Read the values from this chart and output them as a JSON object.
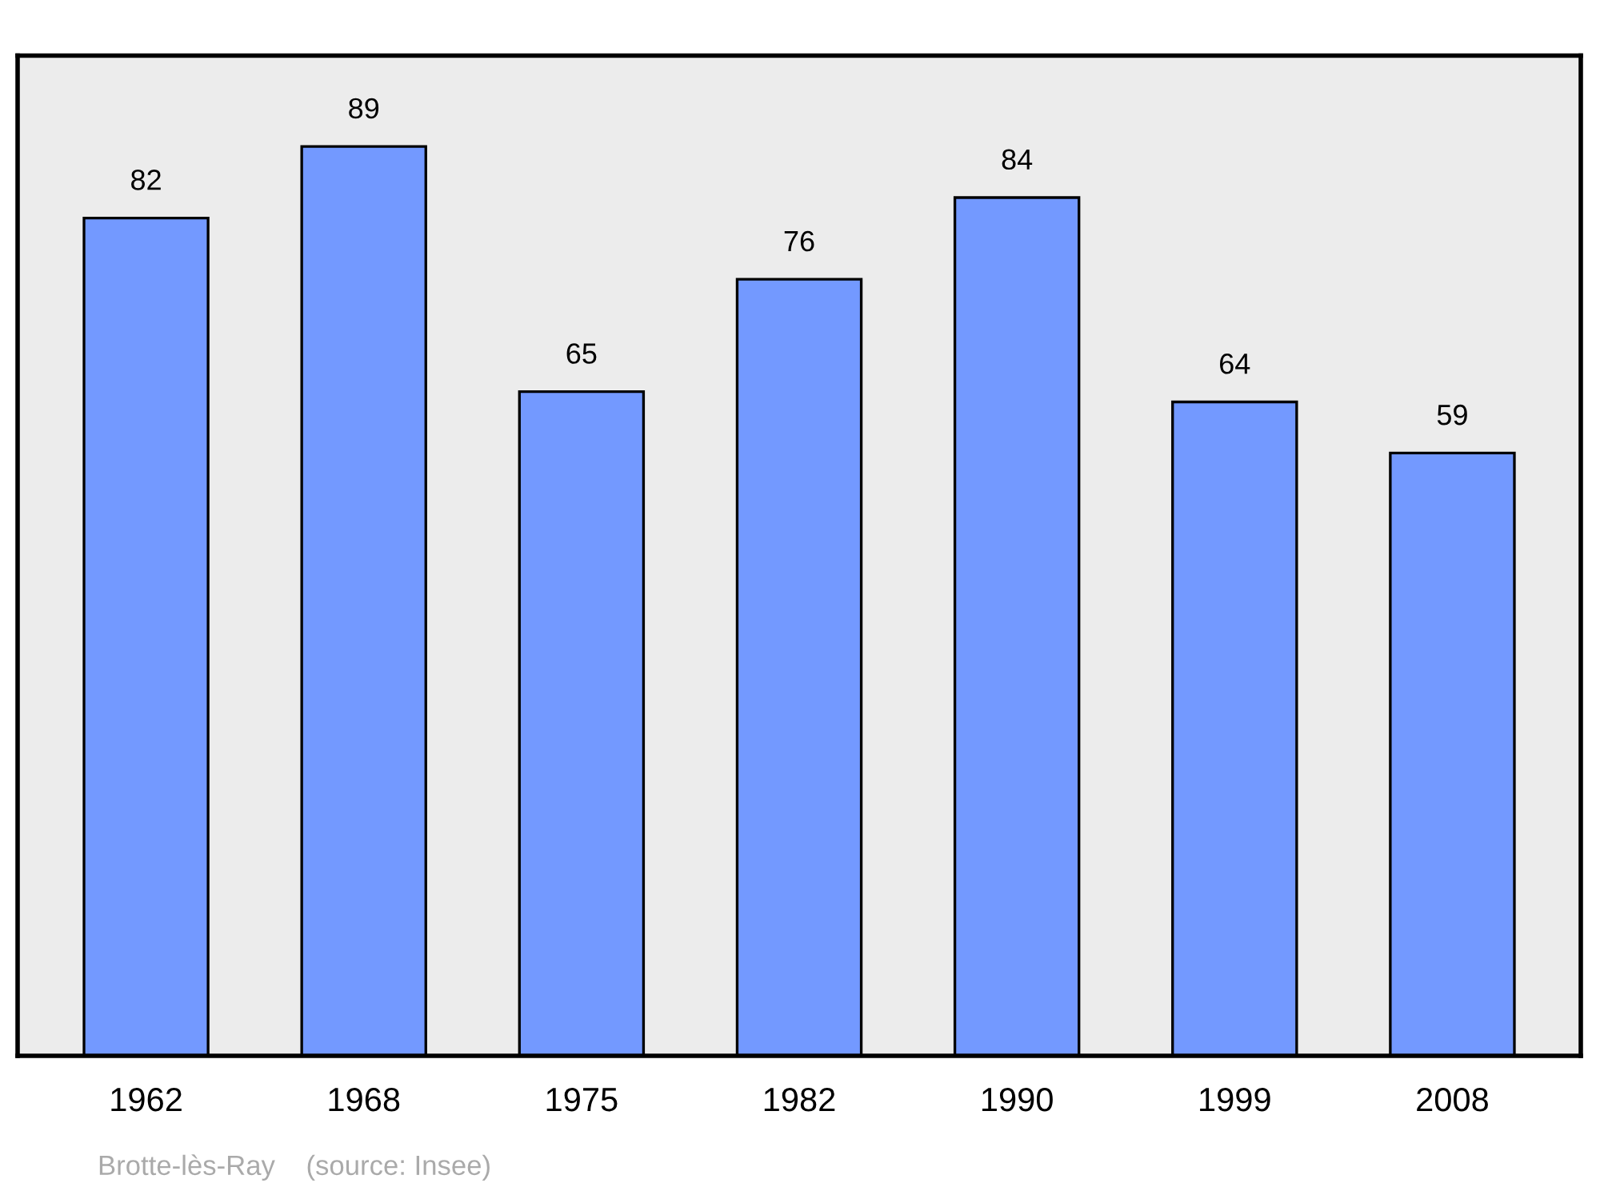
{
  "chart_data": {
    "type": "bar",
    "categories": [
      "1962",
      "1968",
      "1975",
      "1982",
      "1990",
      "1999",
      "2008"
    ],
    "values": [
      82,
      89,
      65,
      76,
      84,
      64,
      59
    ],
    "color": "#7399ff",
    "data_labels": true,
    "grid": false,
    "annotations": [
      "Brotte-lès-Ray    (source: Insee)"
    ]
  }
}
